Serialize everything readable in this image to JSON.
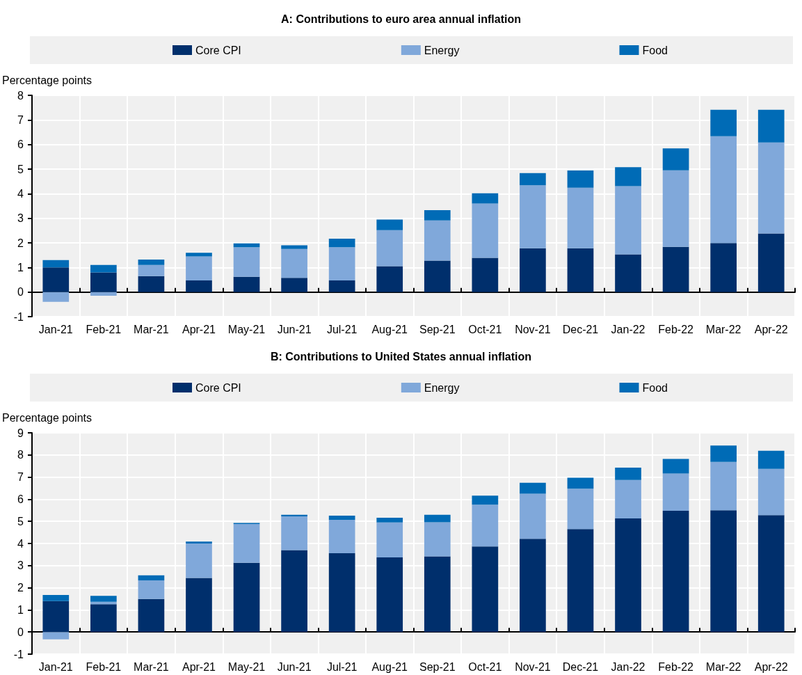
{
  "chart_data": [
    {
      "type": "bar",
      "title": "A: Contributions to euro area annual inflation",
      "ylabel": "Percentage points",
      "categories": [
        "Jan-21",
        "Feb-21",
        "Mar-21",
        "Apr-21",
        "May-21",
        "Jun-21",
        "Jul-21",
        "Aug-21",
        "Sep-21",
        "Oct-21",
        "Nov-21",
        "Dec-21",
        "Jan-22",
        "Feb-22",
        "Mar-22",
        "Apr-22"
      ],
      "series": [
        {
          "name": "Core CPI",
          "color": "#002f6c",
          "values": [
            1.0,
            0.8,
            0.65,
            0.47,
            0.62,
            0.58,
            0.47,
            1.05,
            1.28,
            1.39,
            1.78,
            1.78,
            1.53,
            1.84,
            1.99,
            2.38
          ]
        },
        {
          "name": "Energy",
          "color": "#80a8da",
          "values": [
            -0.4,
            -0.15,
            0.45,
            0.98,
            1.2,
            1.17,
            1.35,
            1.47,
            1.63,
            2.21,
            2.56,
            2.46,
            2.78,
            3.11,
            4.35,
            3.7
          ]
        },
        {
          "name": "Food",
          "color": "#006bb6",
          "values": [
            0.3,
            0.3,
            0.22,
            0.15,
            0.16,
            0.15,
            0.35,
            0.43,
            0.42,
            0.42,
            0.5,
            0.7,
            0.77,
            0.89,
            1.07,
            1.33
          ]
        }
      ],
      "stacked": true,
      "ylim": [
        -1,
        8
      ],
      "yticks": [
        -1,
        0,
        1,
        2,
        3,
        4,
        5,
        6,
        7,
        8
      ],
      "grid": true,
      "legend": "top"
    },
    {
      "type": "bar",
      "title": "B: Contributions to United States annual inflation",
      "ylabel": "Percentage points",
      "categories": [
        "Jan-21",
        "Feb-21",
        "Mar-21",
        "Apr-21",
        "May-21",
        "Jun-21",
        "Jul-21",
        "Aug-21",
        "Sep-21",
        "Oct-21",
        "Nov-21",
        "Dec-21",
        "Jan-22",
        "Feb-22",
        "Mar-22",
        "Apr-22"
      ],
      "series": [
        {
          "name": "Core CPI",
          "color": "#002f6c",
          "values": [
            1.4,
            1.26,
            1.49,
            2.44,
            3.13,
            3.7,
            3.56,
            3.37,
            3.42,
            3.87,
            4.21,
            4.65,
            5.13,
            5.48,
            5.5,
            5.28
          ]
        },
        {
          "name": "Energy",
          "color": "#80a8da",
          "values": [
            -0.33,
            0.11,
            0.84,
            1.56,
            1.75,
            1.53,
            1.51,
            1.58,
            1.54,
            1.88,
            2.04,
            1.83,
            1.74,
            1.68,
            2.19,
            2.09
          ]
        },
        {
          "name": "Food",
          "color": "#006bb6",
          "values": [
            0.27,
            0.26,
            0.23,
            0.09,
            0.05,
            0.07,
            0.19,
            0.21,
            0.34,
            0.41,
            0.49,
            0.49,
            0.56,
            0.66,
            0.74,
            0.82
          ]
        }
      ],
      "stacked": true,
      "ylim": [
        -1,
        9
      ],
      "yticks": [
        -1,
        0,
        1,
        2,
        3,
        4,
        5,
        6,
        7,
        8,
        9
      ],
      "grid": true,
      "legend": "top"
    }
  ]
}
